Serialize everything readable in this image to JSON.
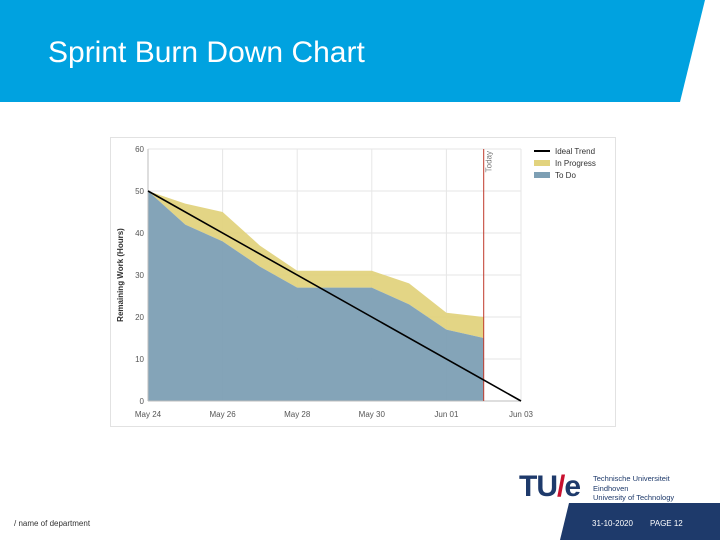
{
  "slide": {
    "title": "Sprint Burn Down Chart",
    "footer_department": "/ name of department",
    "footer_date": "31-10-2020",
    "footer_page": "PAGE 12",
    "header_color": "#00a2e0",
    "footer_color": "#1e3a6b"
  },
  "logo": {
    "mark_tu": "TU",
    "mark_slash": "/",
    "mark_e": "e",
    "line1": "Technische Universiteit",
    "line2": "Eindhoven",
    "line3": "University of Technology"
  },
  "chart_data": {
    "type": "area",
    "title": "",
    "xlabel": "",
    "ylabel": "Remaining Work (Hours)",
    "ylim": [
      0,
      60
    ],
    "xlim": [
      "May 24",
      "Jun 03"
    ],
    "x_ticks": [
      "May 24",
      "May 26",
      "May 28",
      "May 30",
      "Jun 01",
      "Jun 03"
    ],
    "y_ticks": [
      0,
      10,
      20,
      30,
      40,
      50,
      60
    ],
    "grid": true,
    "legend_position": "top-right",
    "dates": [
      "May 24",
      "May 25",
      "May 26",
      "May 27",
      "May 28",
      "May 29",
      "May 30",
      "May 31",
      "Jun 01",
      "Jun 02"
    ],
    "series": [
      {
        "name": "Ideal Trend",
        "type": "line",
        "color": "#000000",
        "x": [
          "May 24",
          "Jun 03"
        ],
        "values": [
          50,
          0
        ]
      },
      {
        "name": "In Progress",
        "type": "area",
        "color": "#e2d37e",
        "values_top": [
          50,
          47,
          45,
          37,
          31,
          31,
          31,
          28,
          21,
          20
        ]
      },
      {
        "name": "To Do",
        "type": "area",
        "color": "#7d9fb4",
        "values": [
          50,
          42,
          38,
          32,
          27,
          27,
          27,
          23,
          17,
          15
        ]
      }
    ],
    "annotations": [
      {
        "label": "Today",
        "x": "Jun 02",
        "color": "#c0392b"
      }
    ]
  }
}
